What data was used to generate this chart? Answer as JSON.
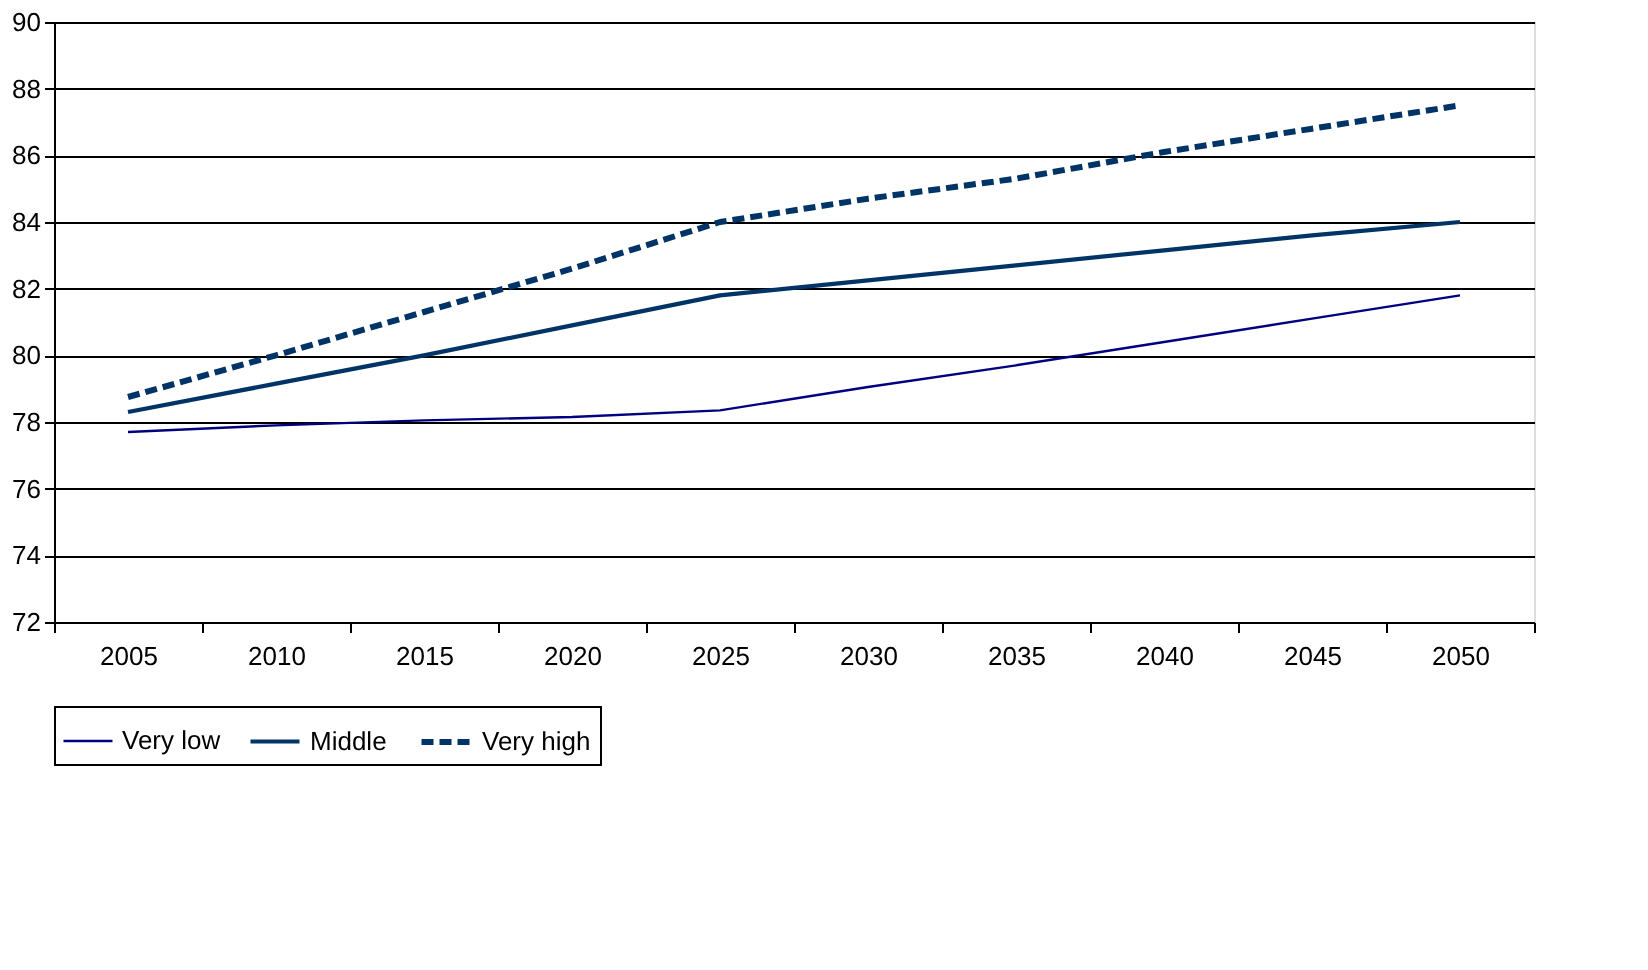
{
  "chart_data": {
    "type": "line",
    "categories": [
      "2005",
      "2010",
      "2015",
      "2020",
      "2025",
      "2030",
      "2035",
      "2040",
      "2045",
      "2050"
    ],
    "series": [
      {
        "name": "Very low",
        "color": "#000080",
        "line_style": "solid",
        "values": [
          77.7,
          77.9,
          78.05,
          78.15,
          78.35,
          79.05,
          79.7,
          80.4,
          81.1,
          81.8
        ]
      },
      {
        "name": "Middle",
        "color": "#003366",
        "line_style": "solid",
        "values": [
          78.3,
          79.15,
          80.0,
          80.9,
          81.8,
          82.25,
          82.7,
          83.15,
          83.6,
          84.0
        ]
      },
      {
        "name": "Very high",
        "color": "#003366",
        "line_style": "dashed",
        "values": [
          78.75,
          80.0,
          81.3,
          82.6,
          84.0,
          84.7,
          85.3,
          86.1,
          86.8,
          87.5
        ]
      }
    ],
    "ylim": [
      72,
      90
    ],
    "yticks": [
      72,
      74,
      76,
      78,
      80,
      82,
      84,
      86,
      88,
      90
    ],
    "grid": "y",
    "legend": "bottom",
    "marker": "none"
  }
}
